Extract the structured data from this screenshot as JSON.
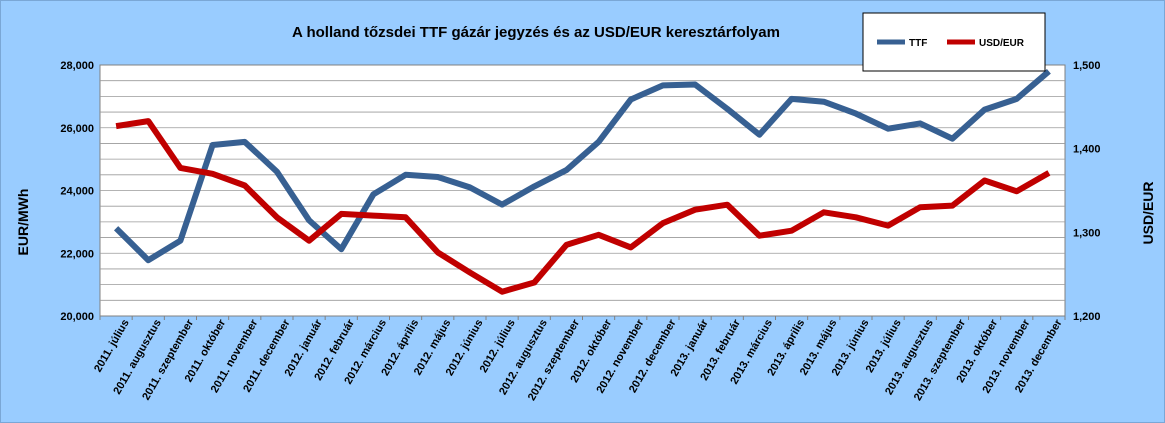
{
  "chart_data": {
    "type": "line",
    "title": "A holland tőzsdei TTF gázár jegyzés és az USD/EUR keresztárfolyam",
    "ylabel": "EUR/MWh",
    "y2label": "USD/EUR",
    "ylim": [
      20000,
      28000
    ],
    "y2lim": [
      1.2,
      1.5
    ],
    "yticks": [
      "20,000",
      "22,000",
      "24,000",
      "26,000",
      "28,000"
    ],
    "y2ticks": [
      "1,200",
      "1,300",
      "1,400",
      "1,500"
    ],
    "grid": true,
    "legend_position": "top-right",
    "categories": [
      "2011. július",
      "2011. augusztus",
      "2011. szeptember",
      "2011. október",
      "2011. november",
      "2011. december",
      "2012. január",
      "2012. február",
      "2012. március",
      "2012. április",
      "2012. május",
      "2012. június",
      "2012. július",
      "2012. augusztus",
      "2012. szeptember",
      "2012. október",
      "2012. november",
      "2012. december",
      "2013. január",
      "2013. február",
      "2013. március",
      "2013. április",
      "2013. május",
      "2013. június",
      "2013. július",
      "2013. augusztus",
      "2013. szeptember",
      "2013. október",
      "2013. november",
      "2013. december"
    ],
    "series": [
      {
        "name": "TTF",
        "axis": "left",
        "color": "#376092",
        "values": [
          22800,
          21780,
          22400,
          25450,
          25550,
          24600,
          23050,
          22130,
          23880,
          24500,
          24430,
          24100,
          23550,
          24130,
          24650,
          25550,
          26900,
          27350,
          27380,
          26600,
          25780,
          26920,
          26830,
          26450,
          25970,
          26140,
          25650,
          26580,
          26920,
          27800
        ]
      },
      {
        "name": "USD/EUR",
        "axis": "right",
        "color": "#c00000",
        "values": [
          1.427,
          1.433,
          1.377,
          1.37,
          1.356,
          1.318,
          1.29,
          1.322,
          1.32,
          1.318,
          1.276,
          1.252,
          1.229,
          1.24,
          1.285,
          1.297,
          1.282,
          1.311,
          1.327,
          1.333,
          1.296,
          1.302,
          1.324,
          1.318,
          1.308,
          1.33,
          1.332,
          1.362,
          1.349,
          1.371
        ]
      }
    ]
  }
}
